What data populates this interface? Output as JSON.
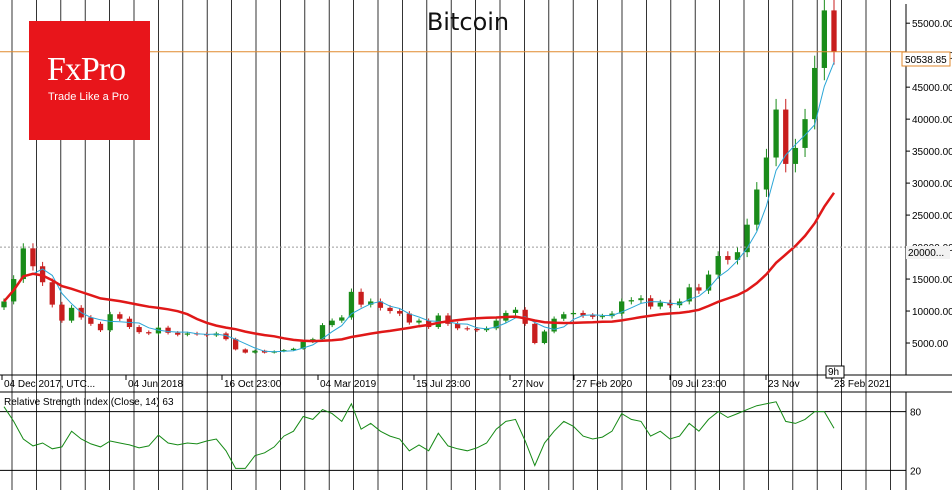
{
  "title": "Bitcoin",
  "logo": {
    "brand": "FxPro",
    "tagline": "Trade Like a Pro"
  },
  "colors": {
    "price_up": "#1a8c1a",
    "price_down": "#c81e1e",
    "ma_fast": "#2aa6d6",
    "ma_slow": "#e01818",
    "rsi_line": "#168a16",
    "current_price_line": "#e08a2e",
    "logo_bg": "#e8151b"
  },
  "chart_data": [
    {
      "type": "line",
      "title": "Bitcoin",
      "price_label": "50538.85",
      "level_label": "20000...",
      "ylim": [
        0,
        58000
      ],
      "y_ticks": [
        "5000.00",
        "10000.00",
        "15000.00",
        "20000.00",
        "25000.00",
        "30000.00",
        "35000.00",
        "40000.00",
        "45000.00",
        "50000.00",
        "55000.00"
      ],
      "x_labels": [
        "04 Dec 2017, UTC...",
        "04 Jun 2018",
        "16 Oct 23:00",
        "04 Mar 2019",
        "15 Jul 23:00",
        "27 Nov",
        "27 Feb 2020",
        "09 Jul 23:00",
        "23 Nov",
        "23 Feb 2021"
      ],
      "cursor_label": "9h",
      "series": [
        {
          "values": [
            11500,
            15000,
            19800,
            17000,
            14500,
            11000,
            8500,
            10500,
            9000,
            8000,
            7000,
            9500,
            8800,
            7500,
            6700,
            6500,
            7400,
            6600,
            6300,
            6500,
            6400,
            6200,
            6500,
            5600,
            4000,
            3500,
            3800,
            3500,
            3700,
            3900,
            4100,
            5200,
            5600,
            7800,
            8500,
            9000,
            13000,
            11000,
            11500,
            10500,
            10000,
            9600,
            8200,
            8500,
            7500,
            9300,
            8000,
            7300,
            7200,
            7000,
            7300,
            8500,
            9700,
            10200,
            8000,
            5000,
            6800,
            8800,
            9500,
            9700,
            9300,
            9100,
            9200,
            9600,
            11500,
            11700,
            12000,
            10700,
            11300,
            10900,
            11500,
            13700,
            13200,
            15700,
            18600,
            18000,
            19200,
            23500,
            29000,
            34000,
            41500,
            33000,
            35500,
            40000,
            48000,
            57000,
            50538
          ]
        }
      ]
    },
    {
      "type": "line",
      "title": "Relative Strength Index (Close, 14) 63",
      "ylim": [
        0,
        100
      ],
      "y_ticks": [
        "20",
        "80"
      ],
      "series": [
        {
          "values": [
            85,
            70,
            52,
            45,
            48,
            42,
            44,
            60,
            52,
            47,
            44,
            50,
            48,
            46,
            43,
            45,
            56,
            48,
            46,
            48,
            47,
            50,
            52,
            40,
            22,
            22,
            35,
            38,
            44,
            55,
            60,
            75,
            72,
            82,
            78,
            70,
            88,
            62,
            68,
            60,
            55,
            52,
            40,
            46,
            40,
            58,
            45,
            42,
            40,
            43,
            48,
            62,
            70,
            72,
            50,
            25,
            48,
            60,
            70,
            65,
            55,
            52,
            54,
            60,
            78,
            72,
            70,
            55,
            60,
            52,
            55,
            68,
            60,
            72,
            80,
            74,
            78,
            82,
            86,
            88,
            90,
            70,
            68,
            72,
            80,
            80,
            63
          ]
        }
      ]
    }
  ]
}
